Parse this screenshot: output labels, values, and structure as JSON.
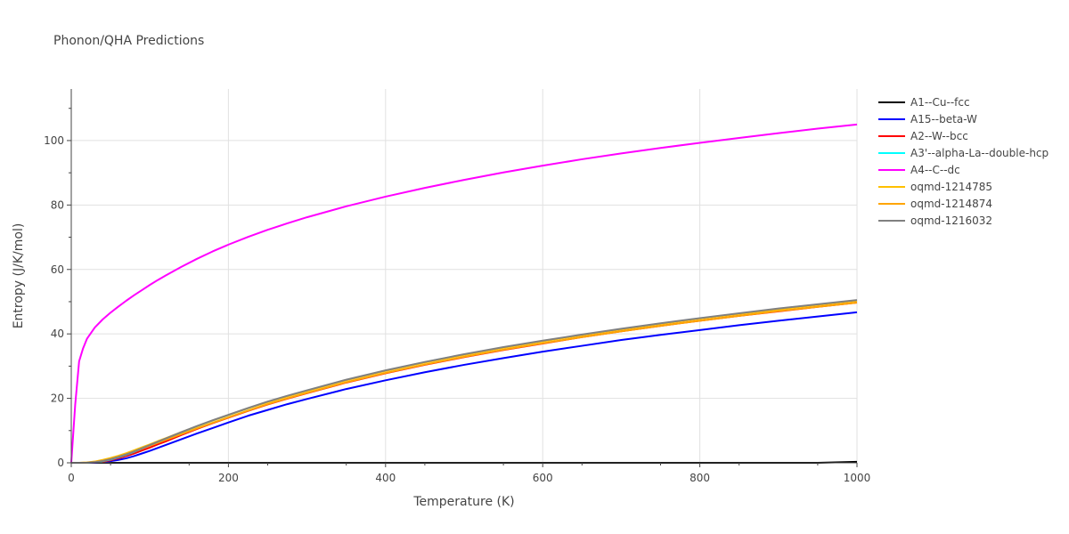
{
  "chart_data": {
    "type": "line",
    "title": "Phonon/QHA Predictions",
    "xlabel": "Temperature (K)",
    "ylabel": "Entropy (J/K/mol)",
    "xlim": [
      0,
      1000
    ],
    "ylim": [
      0,
      116
    ],
    "x_ticks": [
      0,
      200,
      400,
      600,
      800,
      1000
    ],
    "y_ticks": [
      0,
      20,
      40,
      60,
      80,
      100
    ],
    "grid": true,
    "legend_position": "right",
    "series": [
      {
        "name": "A1--Cu--fcc",
        "color": "#000000",
        "x": [
          0,
          10,
          20,
          30,
          40,
          50,
          60,
          70,
          80,
          90,
          100,
          110,
          120,
          140,
          160,
          180,
          200,
          225,
          250,
          275,
          300,
          350,
          400,
          450,
          500,
          550,
          600,
          650,
          700,
          750,
          800,
          850,
          900,
          950,
          1000
        ],
        "y": [
          0,
          0,
          0,
          0,
          0,
          0,
          0,
          0,
          0,
          0,
          0,
          0,
          0,
          0,
          0,
          0,
          0,
          0,
          0,
          0,
          0,
          0,
          0,
          0,
          0,
          0,
          0,
          0,
          0,
          0,
          0,
          0,
          0,
          0,
          0.3
        ]
      },
      {
        "name": "A15--beta-W",
        "color": "#0000ff",
        "x": [
          0,
          10,
          20,
          30,
          40,
          50,
          60,
          70,
          80,
          90,
          100,
          110,
          120,
          140,
          160,
          180,
          200,
          225,
          250,
          275,
          300,
          350,
          400,
          450,
          500,
          550,
          600,
          650,
          700,
          750,
          800,
          850,
          900,
          950,
          1000
        ],
        "y": [
          0,
          0,
          0,
          0.05,
          0.2,
          0.5,
          0.9,
          1.4,
          2.1,
          2.9,
          3.7,
          4.6,
          5.5,
          7.3,
          9.1,
          10.8,
          12.5,
          14.6,
          16.4,
          18.2,
          19.8,
          22.9,
          25.6,
          28.1,
          30.4,
          32.5,
          34.5,
          36.3,
          38.1,
          39.7,
          41.2,
          42.7,
          44.1,
          45.4,
          46.7
        ]
      },
      {
        "name": "A2--W--bcc",
        "color": "#ff0000",
        "x": [
          0,
          10,
          20,
          30,
          40,
          50,
          60,
          70,
          80,
          90,
          100,
          110,
          120,
          140,
          160,
          180,
          200,
          225,
          250,
          275,
          300,
          350,
          400,
          450,
          500,
          550,
          600,
          650,
          700,
          750,
          800,
          850,
          900,
          950,
          1000
        ],
        "y": [
          0,
          0,
          0.02,
          0.1,
          0.35,
          0.8,
          1.4,
          2.1,
          2.9,
          3.8,
          4.7,
          5.7,
          6.6,
          8.6,
          10.5,
          12.3,
          14.0,
          16.1,
          18.1,
          19.9,
          21.6,
          24.9,
          27.8,
          30.4,
          32.8,
          35.0,
          37.0,
          39.0,
          40.8,
          42.5,
          44.1,
          45.6,
          47.0,
          48.4,
          49.7
        ]
      },
      {
        "name": "A3'--alpha-La--double-hcp",
        "color": "#00ffff",
        "x": [
          0,
          10,
          20,
          30,
          40,
          50,
          60,
          70,
          80,
          90,
          100,
          110,
          120,
          140,
          160,
          180,
          200,
          225,
          250,
          275,
          300,
          350,
          400,
          450,
          500,
          550,
          600,
          650,
          700,
          750,
          800,
          850,
          900,
          950,
          1000
        ],
        "y": [
          0,
          0,
          0.03,
          0.15,
          0.5,
          1.0,
          1.7,
          2.5,
          3.4,
          4.4,
          5.4,
          6.4,
          7.4,
          9.4,
          11.3,
          13.1,
          14.8,
          16.9,
          18.9,
          20.7,
          22.4,
          25.7,
          28.6,
          31.2,
          33.6,
          35.8,
          37.8,
          39.7,
          41.5,
          43.2,
          44.8,
          46.3,
          47.8,
          49.1,
          50.4
        ]
      },
      {
        "name": "A4--C--dc",
        "color": "#ff00ff",
        "x": [
          0,
          5,
          10,
          15,
          20,
          30,
          40,
          50,
          60,
          70,
          80,
          90,
          100,
          110,
          120,
          140,
          160,
          180,
          200,
          225,
          250,
          275,
          300,
          350,
          400,
          450,
          500,
          550,
          600,
          650,
          700,
          750,
          800,
          850,
          900,
          950,
          1000
        ],
        "y": [
          0,
          18,
          31.5,
          35.5,
          38.5,
          42,
          44.5,
          46.6,
          48.5,
          50.3,
          52.0,
          53.6,
          55.2,
          56.7,
          58.1,
          60.8,
          63.3,
          65.6,
          67.7,
          70.1,
          72.3,
          74.3,
          76.2,
          79.6,
          82.6,
          85.3,
          87.8,
          90.1,
          92.2,
          94.2,
          96.0,
          97.7,
          99.3,
          100.8,
          102.3,
          103.7,
          105.0
        ]
      },
      {
        "name": "oqmd-1214785",
        "color": "#ffc000",
        "x": [
          0,
          10,
          20,
          30,
          40,
          50,
          60,
          70,
          80,
          90,
          100,
          110,
          120,
          140,
          160,
          180,
          200,
          225,
          250,
          275,
          300,
          350,
          400,
          450,
          500,
          550,
          600,
          650,
          700,
          750,
          800,
          850,
          900,
          950,
          1000
        ],
        "y": [
          0,
          0.01,
          0.1,
          0.4,
          0.9,
          1.5,
          2.2,
          3.0,
          3.9,
          4.8,
          5.7,
          6.7,
          7.6,
          9.5,
          11.3,
          13.1,
          14.8,
          16.9,
          18.8,
          20.6,
          22.3,
          25.6,
          28.5,
          31.1,
          33.5,
          35.7,
          37.7,
          39.6,
          41.4,
          43.1,
          44.7,
          46.2,
          47.6,
          49.0,
          50.3
        ]
      },
      {
        "name": "oqmd-1214874",
        "color": "#ffa500",
        "x": [
          0,
          10,
          20,
          30,
          40,
          50,
          60,
          70,
          80,
          90,
          100,
          110,
          120,
          140,
          160,
          180,
          200,
          225,
          250,
          275,
          300,
          350,
          400,
          450,
          500,
          550,
          600,
          650,
          700,
          750,
          800,
          850,
          900,
          950,
          1000
        ],
        "y": [
          0,
          0.01,
          0.08,
          0.3,
          0.7,
          1.2,
          1.9,
          2.7,
          3.5,
          4.4,
          5.3,
          6.2,
          7.1,
          8.9,
          10.7,
          12.4,
          14.1,
          16.2,
          18.2,
          20.0,
          21.7,
          25.0,
          27.9,
          30.5,
          32.9,
          35.1,
          37.1,
          39.0,
          40.8,
          42.5,
          44.1,
          45.6,
          47.1,
          48.4,
          49.7
        ]
      },
      {
        "name": "oqmd-1216032",
        "color": "#808080",
        "x": [
          0,
          10,
          20,
          30,
          40,
          50,
          60,
          70,
          80,
          90,
          100,
          110,
          120,
          140,
          160,
          180,
          200,
          225,
          250,
          275,
          300,
          350,
          400,
          450,
          500,
          550,
          600,
          650,
          700,
          750,
          800,
          850,
          900,
          950,
          1000
        ],
        "y": [
          0,
          0,
          0.04,
          0.2,
          0.55,
          1.1,
          1.8,
          2.6,
          3.5,
          4.5,
          5.5,
          6.5,
          7.5,
          9.5,
          11.4,
          13.2,
          14.9,
          17.0,
          19.0,
          20.8,
          22.5,
          25.8,
          28.7,
          31.3,
          33.7,
          35.9,
          37.9,
          39.8,
          41.6,
          43.3,
          44.9,
          46.4,
          47.9,
          49.2,
          50.5
        ]
      }
    ]
  }
}
